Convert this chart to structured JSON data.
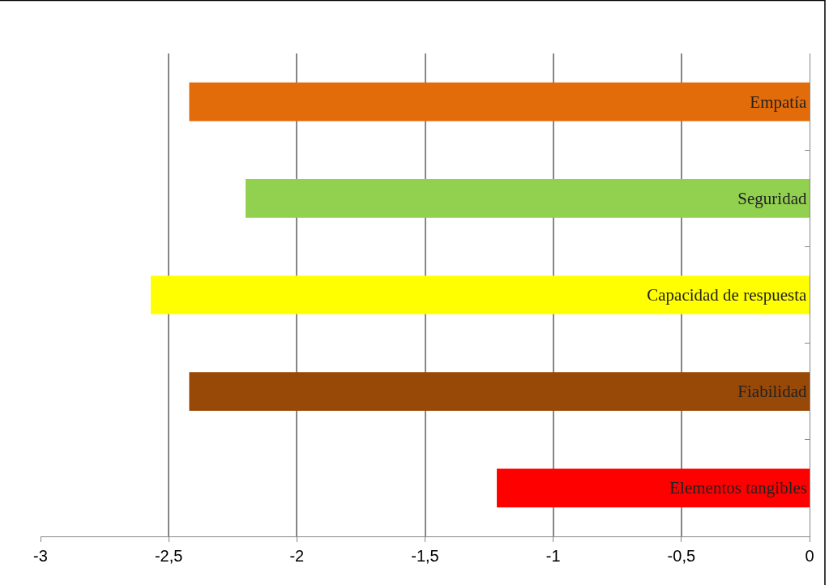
{
  "chart_data": {
    "type": "bar",
    "orientation": "horizontal",
    "categories": [
      "Empatía",
      "Seguridad",
      "Capacidad de respuesta",
      "Fiabilidad",
      "Elementos tangibles"
    ],
    "values": [
      -2.42,
      -2.2,
      -2.57,
      -2.42,
      -1.22
    ],
    "colors": [
      "#e36c0a",
      "#92d050",
      "#ffff00",
      "#984807",
      "#ff0000"
    ],
    "xlim": [
      -3,
      0
    ],
    "xticks": [
      -3,
      {
        "value": -2.5,
        "label": "-2,5"
      },
      -2,
      {
        "value": -1.5,
        "label": "-1,5"
      },
      -1,
      {
        "value": -0.5,
        "label": "-0,5"
      },
      0
    ],
    "grid": "x",
    "legend": false,
    "tick_labels": "x"
  }
}
